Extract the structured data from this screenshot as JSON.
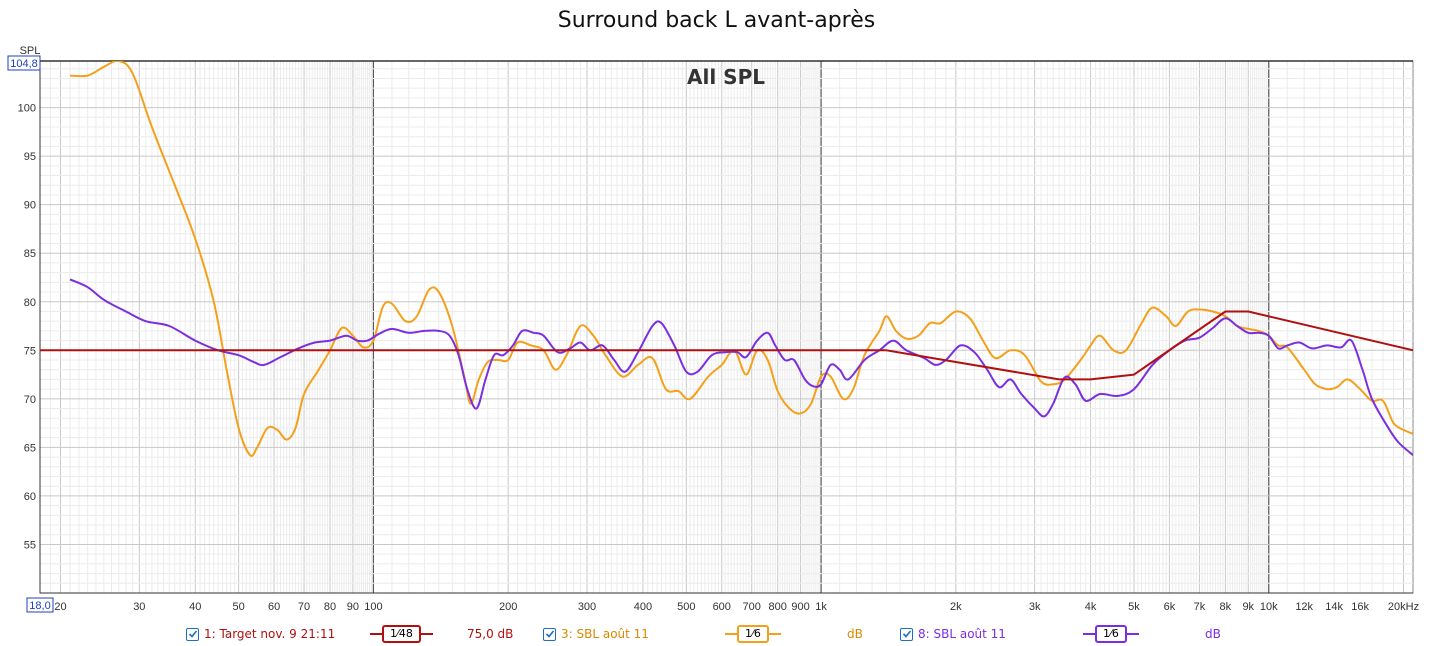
{
  "title": "Surround back L avant-après",
  "chart_data": {
    "type": "line",
    "title": "Surround back L avant-après",
    "subtitle": "All SPL",
    "ylabel": "SPL",
    "y_top_readout": "104,8",
    "x_left_readout": "18,0",
    "x_scale": "log",
    "xlim": [
      18,
      21000
    ],
    "ylim": [
      50,
      104.8
    ],
    "grid": true,
    "y_ticks": [
      55,
      60,
      65,
      70,
      75,
      80,
      85,
      90,
      95,
      100
    ],
    "x_tick_labels": [
      {
        "x": 20,
        "label": "20"
      },
      {
        "x": 30,
        "label": "30"
      },
      {
        "x": 40,
        "label": "40"
      },
      {
        "x": 50,
        "label": "50"
      },
      {
        "x": 60,
        "label": "60"
      },
      {
        "x": 70,
        "label": "70"
      },
      {
        "x": 80,
        "label": "80"
      },
      {
        "x": 90,
        "label": "90"
      },
      {
        "x": 100,
        "label": "100"
      },
      {
        "x": 200,
        "label": "200"
      },
      {
        "x": 300,
        "label": "300"
      },
      {
        "x": 400,
        "label": "400"
      },
      {
        "x": 500,
        "label": "500"
      },
      {
        "x": 600,
        "label": "600"
      },
      {
        "x": 700,
        "label": "700"
      },
      {
        "x": 800,
        "label": "800"
      },
      {
        "x": 900,
        "label": "900"
      },
      {
        "x": 1000,
        "label": "1k"
      },
      {
        "x": 2000,
        "label": "2k"
      },
      {
        "x": 3000,
        "label": "3k"
      },
      {
        "x": 4000,
        "label": "4k"
      },
      {
        "x": 5000,
        "label": "5k"
      },
      {
        "x": 6000,
        "label": "6k"
      },
      {
        "x": 7000,
        "label": "7k"
      },
      {
        "x": 8000,
        "label": "8k"
      },
      {
        "x": 9000,
        "label": "9k"
      },
      {
        "x": 10000,
        "label": "10k"
      },
      {
        "x": 12000,
        "label": "12k"
      },
      {
        "x": 14000,
        "label": "14k"
      },
      {
        "x": 16000,
        "label": "16k"
      },
      {
        "x": 20000,
        "label": "20kHz"
      }
    ],
    "series": [
      {
        "color": "#b01010",
        "points": [
          [
            18,
            75
          ],
          [
            1400,
            75
          ],
          [
            3400,
            72
          ],
          [
            4000,
            72
          ],
          [
            5000,
            72.5
          ],
          [
            8000,
            79
          ],
          [
            9000,
            79
          ],
          [
            21000,
            75
          ]
        ]
      },
      {
        "color": "#f5a01a",
        "points": [
          [
            21,
            103.3
          ],
          [
            23,
            103.3
          ],
          [
            25,
            104.2
          ],
          [
            27,
            104.8
          ],
          [
            29,
            103.5
          ],
          [
            32,
            98
          ],
          [
            36,
            92
          ],
          [
            40,
            86.5
          ],
          [
            44,
            80
          ],
          [
            47,
            73
          ],
          [
            50,
            67
          ],
          [
            53,
            64.2
          ],
          [
            55,
            65
          ],
          [
            58,
            67
          ],
          [
            61,
            66.8
          ],
          [
            64,
            65.8
          ],
          [
            67,
            67
          ],
          [
            70,
            70.5
          ],
          [
            75,
            72.8
          ],
          [
            80,
            75
          ],
          [
            85,
            77.3
          ],
          [
            90,
            76.5
          ],
          [
            95,
            75.3
          ],
          [
            100,
            76
          ],
          [
            105,
            79.5
          ],
          [
            110,
            79.8
          ],
          [
            118,
            78
          ],
          [
            125,
            78.5
          ],
          [
            133,
            81.2
          ],
          [
            140,
            81
          ],
          [
            150,
            77.5
          ],
          [
            160,
            72
          ],
          [
            165,
            69.5
          ],
          [
            172,
            72
          ],
          [
            180,
            73.8
          ],
          [
            190,
            74
          ],
          [
            200,
            74
          ],
          [
            210,
            75.8
          ],
          [
            225,
            75.5
          ],
          [
            240,
            75
          ],
          [
            255,
            73
          ],
          [
            270,
            74.5
          ],
          [
            290,
            77.5
          ],
          [
            310,
            76.5
          ],
          [
            330,
            74.5
          ],
          [
            360,
            72.3
          ],
          [
            390,
            73.5
          ],
          [
            420,
            74.2
          ],
          [
            450,
            71
          ],
          [
            480,
            70.8
          ],
          [
            510,
            70
          ],
          [
            560,
            72.3
          ],
          [
            600,
            73.5
          ],
          [
            640,
            75
          ],
          [
            680,
            72.5
          ],
          [
            720,
            75
          ],
          [
            760,
            74
          ],
          [
            800,
            70.8
          ],
          [
            850,
            69
          ],
          [
            900,
            68.5
          ],
          [
            950,
            69.5
          ],
          [
            1000,
            72.3
          ],
          [
            1050,
            72.3
          ],
          [
            1120,
            70
          ],
          [
            1180,
            71
          ],
          [
            1250,
            74.5
          ],
          [
            1350,
            77
          ],
          [
            1400,
            78.5
          ],
          [
            1470,
            77
          ],
          [
            1550,
            76.2
          ],
          [
            1650,
            76.5
          ],
          [
            1750,
            77.8
          ],
          [
            1850,
            77.8
          ],
          [
            2000,
            79
          ],
          [
            2150,
            78.3
          ],
          [
            2300,
            76
          ],
          [
            2450,
            74.2
          ],
          [
            2650,
            75
          ],
          [
            2850,
            74.5
          ],
          [
            3100,
            71.8
          ],
          [
            3300,
            71.5
          ],
          [
            3500,
            72
          ],
          [
            3800,
            74
          ],
          [
            4000,
            75.5
          ],
          [
            4200,
            76.5
          ],
          [
            4500,
            75
          ],
          [
            4800,
            75
          ],
          [
            5200,
            77.8
          ],
          [
            5500,
            79.4
          ],
          [
            5900,
            78.5
          ],
          [
            6200,
            77.5
          ],
          [
            6600,
            79
          ],
          [
            7000,
            79.2
          ],
          [
            7500,
            79
          ],
          [
            8000,
            78.5
          ],
          [
            8500,
            77.5
          ],
          [
            9000,
            77.2
          ],
          [
            9500,
            77
          ],
          [
            10000,
            76.5
          ],
          [
            10500,
            75.5
          ],
          [
            11000,
            75.3
          ],
          [
            12000,
            73
          ],
          [
            12700,
            71.5
          ],
          [
            13500,
            71
          ],
          [
            14200,
            71.2
          ],
          [
            15000,
            72
          ],
          [
            16000,
            71
          ],
          [
            17000,
            69.8
          ],
          [
            18000,
            69.8
          ],
          [
            19000,
            67.5
          ],
          [
            20000,
            66.8
          ],
          [
            21000,
            66.4
          ]
        ]
      },
      {
        "color": "#7b2ee0",
        "points": [
          [
            21,
            82.3
          ],
          [
            23,
            81.5
          ],
          [
            25,
            80.2
          ],
          [
            28,
            79
          ],
          [
            31,
            78
          ],
          [
            35,
            77.5
          ],
          [
            40,
            76
          ],
          [
            45,
            75
          ],
          [
            50,
            74.5
          ],
          [
            54,
            73.8
          ],
          [
            57,
            73.5
          ],
          [
            62,
            74.3
          ],
          [
            68,
            75.2
          ],
          [
            74,
            75.8
          ],
          [
            80,
            76
          ],
          [
            87,
            76.5
          ],
          [
            92,
            76
          ],
          [
            97,
            76
          ],
          [
            103,
            76.7
          ],
          [
            110,
            77.2
          ],
          [
            120,
            76.8
          ],
          [
            130,
            77
          ],
          [
            140,
            77
          ],
          [
            148,
            76.5
          ],
          [
            155,
            74.5
          ],
          [
            162,
            71
          ],
          [
            170,
            69
          ],
          [
            178,
            72
          ],
          [
            186,
            74.5
          ],
          [
            195,
            74.5
          ],
          [
            205,
            75.5
          ],
          [
            215,
            77
          ],
          [
            228,
            76.8
          ],
          [
            240,
            76.5
          ],
          [
            258,
            74.8
          ],
          [
            275,
            75.2
          ],
          [
            290,
            75.8
          ],
          [
            305,
            75
          ],
          [
            325,
            75.5
          ],
          [
            345,
            74
          ],
          [
            365,
            72.8
          ],
          [
            390,
            74.8
          ],
          [
            420,
            77.5
          ],
          [
            440,
            77.8
          ],
          [
            470,
            75.5
          ],
          [
            500,
            72.8
          ],
          [
            530,
            72.8
          ],
          [
            570,
            74.5
          ],
          [
            610,
            74.8
          ],
          [
            650,
            74.8
          ],
          [
            680,
            74.3
          ],
          [
            720,
            76
          ],
          [
            760,
            76.8
          ],
          [
            790,
            75.5
          ],
          [
            830,
            74
          ],
          [
            870,
            74
          ],
          [
            920,
            72
          ],
          [
            960,
            71.3
          ],
          [
            1000,
            71.5
          ],
          [
            1050,
            73.5
          ],
          [
            1100,
            73
          ],
          [
            1150,
            72
          ],
          [
            1250,
            74
          ],
          [
            1350,
            75
          ],
          [
            1450,
            76
          ],
          [
            1550,
            75
          ],
          [
            1700,
            74.2
          ],
          [
            1800,
            73.5
          ],
          [
            1900,
            74
          ],
          [
            2050,
            75.5
          ],
          [
            2200,
            74.8
          ],
          [
            2350,
            73
          ],
          [
            2500,
            71.2
          ],
          [
            2650,
            72
          ],
          [
            2800,
            70.5
          ],
          [
            3000,
            69
          ],
          [
            3150,
            68.2
          ],
          [
            3300,
            69.5
          ],
          [
            3500,
            72.2
          ],
          [
            3700,
            71.5
          ],
          [
            3900,
            69.8
          ],
          [
            4200,
            70.5
          ],
          [
            4600,
            70.3
          ],
          [
            5000,
            71
          ],
          [
            5500,
            73.5
          ],
          [
            6000,
            75
          ],
          [
            6500,
            76
          ],
          [
            7000,
            76.3
          ],
          [
            7500,
            77.3
          ],
          [
            8000,
            78.3
          ],
          [
            8500,
            77.5
          ],
          [
            9000,
            76.8
          ],
          [
            9500,
            76.8
          ],
          [
            10000,
            76.5
          ],
          [
            10500,
            75.2
          ],
          [
            11000,
            75.5
          ],
          [
            11700,
            75.8
          ],
          [
            12500,
            75.2
          ],
          [
            13500,
            75.5
          ],
          [
            14500,
            75.3
          ],
          [
            15300,
            76
          ],
          [
            16200,
            73
          ],
          [
            17000,
            70
          ],
          [
            18500,
            67
          ],
          [
            19500,
            65.5
          ],
          [
            21000,
            64.2
          ]
        ]
      }
    ]
  },
  "legend": [
    {
      "label": "1: Target nov. 9 21:11",
      "smoothing_num": "1",
      "smoothing_den": "48",
      "value": "75,0 dB",
      "color": "#b01010"
    },
    {
      "label": "3: SBL août 11",
      "smoothing_num": "1",
      "smoothing_den": "6",
      "value": "dB",
      "color": "#f5a01a"
    },
    {
      "label": "8: SBL août 11",
      "smoothing_num": "1",
      "smoothing_den": "6",
      "value": "dB",
      "color": "#7b2ee0"
    }
  ]
}
